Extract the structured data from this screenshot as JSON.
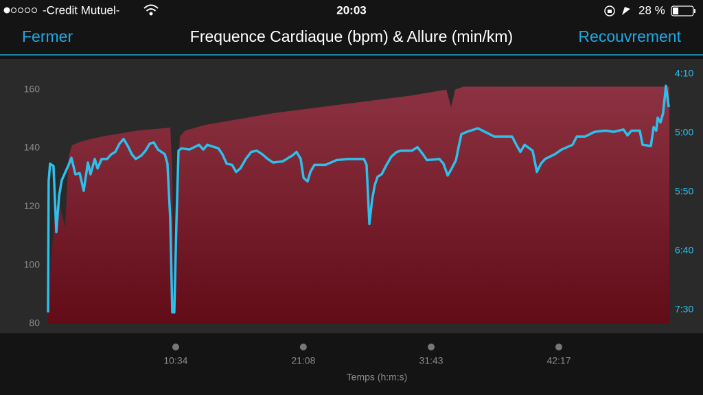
{
  "status_bar": {
    "carrier": "-Credit Mutuel-",
    "time": "20:03",
    "battery": "28 %"
  },
  "nav_bar": {
    "left_button": "Fermer",
    "title": "Frequence Cardiaque (bpm) & Allure (min/km)",
    "right_button": "Recouvrement"
  },
  "chart_data": {
    "type": "line",
    "x_label": "Temps (h:m:s)",
    "xlim": [
      0,
      3086
    ],
    "xticks": [
      {
        "value": 634,
        "label": "10:34"
      },
      {
        "value": 1268,
        "label": "21:08"
      },
      {
        "value": 1903,
        "label": "31:43"
      },
      {
        "value": 2537,
        "label": "42:17"
      }
    ],
    "ylim": [
      80,
      170
    ],
    "yticks": [
      80,
      100,
      120,
      140,
      160
    ],
    "y2lim": [
      461.6,
      238.4
    ],
    "y2ticks": [
      {
        "value": 250,
        "label": "4:10"
      },
      {
        "value": 300,
        "label": "5:00"
      },
      {
        "value": 350,
        "label": "5:50"
      },
      {
        "value": 400,
        "label": "6:40"
      },
      {
        "value": 450,
        "label": "7:30"
      }
    ],
    "series": [
      {
        "type": "area",
        "color": "#8c3242",
        "x": [
          0,
          14,
          34,
          51,
          85,
          102,
          119,
          153,
          205,
          273,
          443,
          607,
          617,
          627,
          638,
          655,
          682,
          784,
          1125,
          1466,
          1807,
          1978,
          2002,
          2022,
          2063,
          3086
        ],
        "values": [
          84,
          100,
          118,
          122,
          113,
          137,
          141,
          142,
          143,
          144,
          146,
          147,
          132,
          81,
          120,
          144,
          146,
          148,
          152,
          155,
          158,
          160,
          154,
          160,
          161,
          161
        ]
      },
      {
        "type": "line",
        "color": "#2cc0ec",
        "axis": "y2",
        "x": [
          0,
          3,
          10,
          27,
          41,
          55,
          68,
          102,
          116,
          136,
          157,
          177,
          198,
          211,
          232,
          246,
          266,
          293,
          314,
          334,
          355,
          375,
          396,
          416,
          436,
          464,
          484,
          505,
          525,
          546,
          580,
          593,
          607,
          617,
          627,
          638,
          648,
          662,
          702,
          750,
          771,
          791,
          846,
          866,
          887,
          914,
          934,
          955,
          982,
          1009,
          1037,
          1064,
          1091,
          1118,
          1166,
          1214,
          1234,
          1255,
          1269,
          1289,
          1303,
          1323,
          1378,
          1432,
          1487,
          1548,
          1569,
          1582,
          1596,
          1610,
          1623,
          1637,
          1657,
          1678,
          1705,
          1732,
          1753,
          1807,
          1835,
          1862,
          1882,
          1944,
          1964,
          1985,
          2005,
          2026,
          2039,
          2053,
          2080,
          2135,
          2217,
          2305,
          2326,
          2346,
          2367,
          2407,
          2428,
          2448,
          2469,
          2517,
          2551,
          2605,
          2626,
          2667,
          2714,
          2769,
          2810,
          2858,
          2878,
          2898,
          2939,
          2953,
          2994,
          3008,
          3021,
          3028,
          3042,
          3055,
          3069,
          3083
        ],
        "values": [
          452,
          341,
          326,
          328,
          384,
          353,
          340,
          327,
          321,
          335,
          334,
          349,
          325,
          335,
          322,
          330,
          322,
          322,
          318,
          316,
          309,
          305,
          311,
          318,
          322,
          319,
          315,
          309,
          308,
          314,
          318,
          326,
          373,
          452,
          452,
          373,
          315,
          313,
          314,
          310,
          314,
          310,
          313,
          318,
          326,
          327,
          333,
          330,
          322,
          316,
          315,
          318,
          322,
          325,
          324,
          319,
          316,
          322,
          338,
          341,
          333,
          327,
          327,
          323,
          322,
          322,
          322,
          327,
          377,
          356,
          344,
          337,
          335,
          328,
          320,
          316,
          315,
          315,
          312,
          318,
          323,
          322,
          326,
          336,
          330,
          323,
          312,
          301,
          299,
          296,
          303,
          303,
          310,
          316,
          310,
          315,
          333,
          326,
          322,
          318,
          314,
          310,
          303,
          303,
          299,
          298,
          299,
          297,
          302,
          298,
          298,
          310,
          311,
          295,
          298,
          287,
          291,
          283,
          260,
          278
        ]
      }
    ]
  }
}
